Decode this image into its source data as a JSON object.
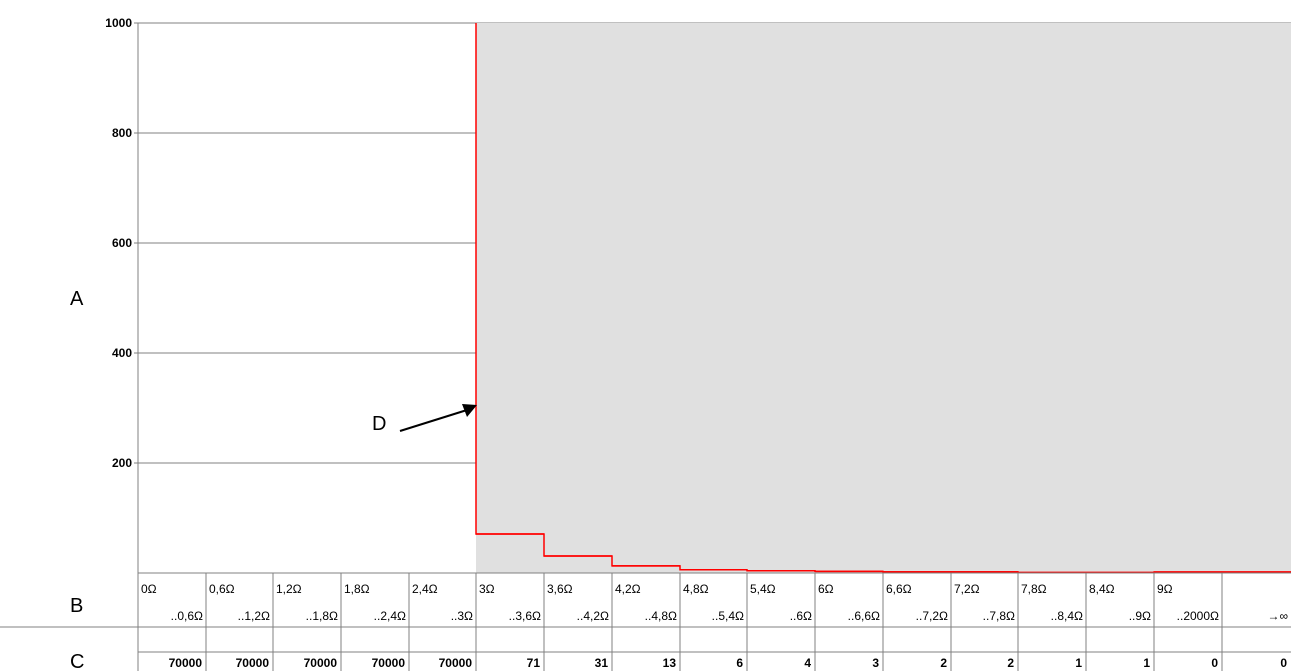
{
  "chart_data": {
    "type": "line",
    "title": "",
    "y_axis_label": "A",
    "bin_row_label": "B",
    "count_row_label": "C",
    "ylim": [
      0,
      1000
    ],
    "y_ticks": [
      200,
      400,
      600,
      800,
      1000
    ],
    "grid": true,
    "shaded_region_color": "#e0e0e0",
    "line_color": "#ff0000",
    "bins": [
      {
        "from": "0Ω",
        "to": "..0,6Ω",
        "count_label": "70000",
        "value": 1000
      },
      {
        "from": "0,6Ω",
        "to": "..1,2Ω",
        "count_label": "70000",
        "value": 1000
      },
      {
        "from": "1,2Ω",
        "to": "..1,8Ω",
        "count_label": "70000",
        "value": 1000
      },
      {
        "from": "1,8Ω",
        "to": "..2,4Ω",
        "count_label": "70000",
        "value": 1000
      },
      {
        "from": "2,4Ω",
        "to": "..3Ω",
        "count_label": "70000",
        "value": 1000
      },
      {
        "from": "3Ω",
        "to": "..3,6Ω",
        "count_label": "71",
        "value": 71
      },
      {
        "from": "3,6Ω",
        "to": "..4,2Ω",
        "count_label": "31",
        "value": 31
      },
      {
        "from": "4,2Ω",
        "to": "..4,8Ω",
        "count_label": "13",
        "value": 13
      },
      {
        "from": "4,8Ω",
        "to": "..5,4Ω",
        "count_label": "6",
        "value": 6
      },
      {
        "from": "5,4Ω",
        "to": "..6Ω",
        "count_label": "4",
        "value": 4
      },
      {
        "from": "6Ω",
        "to": "..6,6Ω",
        "count_label": "3",
        "value": 3
      },
      {
        "from": "6,6Ω",
        "to": "..7,2Ω",
        "count_label": "2",
        "value": 2
      },
      {
        "from": "7,2Ω",
        "to": "..7,8Ω",
        "count_label": "2",
        "value": 2
      },
      {
        "from": "7,8Ω",
        "to": "..8,4Ω",
        "count_label": "1",
        "value": 1
      },
      {
        "from": "8,4Ω",
        "to": "..9Ω",
        "count_label": "1",
        "value": 1
      },
      {
        "from": "9Ω",
        "to": "..2000Ω",
        "count_label": "0",
        "value": 0
      },
      {
        "from": "",
        "to": "→∞",
        "count_label": "0",
        "value": 0
      }
    ],
    "annotation": {
      "label": "D",
      "points_to_bin": 5
    }
  }
}
